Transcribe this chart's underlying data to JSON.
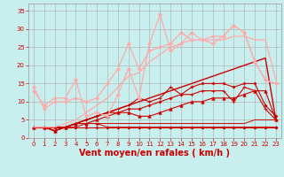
{
  "background_color": "#c8eeed",
  "grid_color": "#aaaaaa",
  "xlabel": "Vent moyen/en rafales ( km/h )",
  "xlabel_color": "#cc0000",
  "xlabel_fontsize": 7,
  "yticks": [
    0,
    5,
    10,
    15,
    20,
    25,
    30,
    35
  ],
  "xticks": [
    0,
    1,
    2,
    3,
    4,
    5,
    6,
    7,
    8,
    9,
    10,
    11,
    12,
    13,
    14,
    15,
    16,
    17,
    18,
    19,
    20,
    21,
    22,
    23
  ],
  "xlim": [
    -0.5,
    23.5
  ],
  "ylim": [
    0,
    37
  ],
  "tick_color": "#cc0000",
  "tick_fontsize": 5,
  "series": [
    {
      "x": [
        0,
        1,
        2,
        3,
        4,
        5,
        6,
        7,
        8,
        9,
        10,
        11,
        12,
        13,
        14,
        15,
        16,
        17,
        18,
        19,
        20,
        21,
        22,
        23
      ],
      "y": [
        3,
        3,
        3,
        3,
        3,
        3,
        3,
        3,
        3,
        3,
        3,
        3,
        3,
        3,
        3,
        3,
        3,
        3,
        3,
        3,
        3,
        3,
        3,
        3
      ],
      "color": "#cc0000",
      "lw": 0.8,
      "marker": "D",
      "ms": 1.5
    },
    {
      "x": [
        0,
        1,
        2,
        3,
        4,
        5,
        6,
        7,
        8,
        9,
        10,
        11,
        12,
        13,
        14,
        15,
        16,
        17,
        18,
        19,
        20,
        21,
        22,
        23
      ],
      "y": [
        3,
        3,
        2,
        3,
        3,
        4,
        4,
        3,
        3,
        3,
        3,
        3,
        3,
        3,
        3,
        3,
        3,
        3,
        3,
        3,
        3,
        3,
        3,
        3
      ],
      "color": "#cc0000",
      "lw": 0.7,
      "marker": "D",
      "ms": 1.5
    },
    {
      "x": [
        0,
        1,
        2,
        3,
        4,
        5,
        6,
        7,
        8,
        9,
        10,
        11,
        12,
        13,
        14,
        15,
        16,
        17,
        18,
        19,
        20,
        21,
        22,
        23
      ],
      "y": [
        3,
        3,
        2,
        3,
        4,
        4,
        5,
        6,
        7,
        7,
        6,
        6,
        7,
        8,
        9,
        10,
        10,
        11,
        11,
        11,
        12,
        13,
        13,
        5
      ],
      "color": "#cc0000",
      "lw": 0.8,
      "marker": "^",
      "ms": 2.5
    },
    {
      "x": [
        0,
        1,
        2,
        3,
        4,
        5,
        6,
        7,
        8,
        9,
        10,
        11,
        12,
        13,
        14,
        15,
        16,
        17,
        18,
        19,
        20,
        21,
        22,
        23
      ],
      "y": [
        3,
        3,
        2,
        3,
        4,
        5,
        6,
        7,
        8,
        9,
        10,
        11,
        12,
        13,
        14,
        15,
        16,
        17,
        18,
        19,
        20,
        21,
        22,
        5
      ],
      "color": "#cc0000",
      "lw": 1.0,
      "marker": null,
      "ms": 0
    },
    {
      "x": [
        0,
        1,
        2,
        3,
        4,
        5,
        6,
        7,
        8,
        9,
        10,
        11,
        12,
        13,
        14,
        15,
        16,
        17,
        18,
        19,
        20,
        21,
        22,
        23
      ],
      "y": [
        3,
        3,
        2,
        3,
        4,
        5,
        6,
        7,
        8,
        9,
        11,
        10,
        11,
        14,
        12,
        12,
        13,
        13,
        13,
        10,
        14,
        13,
        8,
        5
      ],
      "color": "#cc0000",
      "lw": 0.8,
      "marker": "+",
      "ms": 3
    },
    {
      "x": [
        0,
        1,
        2,
        3,
        4,
        5,
        6,
        7,
        8,
        9,
        10,
        11,
        12,
        13,
        14,
        15,
        16,
        17,
        18,
        19,
        20,
        21,
        22,
        23
      ],
      "y": [
        3,
        3,
        3,
        3,
        4,
        4,
        4,
        4,
        4,
        4,
        4,
        4,
        4,
        4,
        4,
        4,
        4,
        4,
        4,
        4,
        4,
        5,
        5,
        5
      ],
      "color": "#cc0000",
      "lw": 0.7,
      "marker": null,
      "ms": 0
    },
    {
      "x": [
        0,
        1,
        2,
        3,
        4,
        5,
        6,
        7,
        8,
        9,
        10,
        11,
        12,
        13,
        14,
        15,
        16,
        17,
        18,
        19,
        20,
        21,
        22,
        23
      ],
      "y": [
        3,
        3,
        3,
        3,
        4,
        5,
        6,
        7,
        7,
        8,
        8,
        9,
        10,
        11,
        12,
        14,
        15,
        15,
        15,
        14,
        15,
        15,
        9,
        6
      ],
      "color": "#cc0000",
      "lw": 0.8,
      "marker": "D",
      "ms": 1.5
    },
    {
      "x": [
        0,
        1,
        2,
        3,
        4,
        5,
        6,
        7,
        8,
        9,
        10,
        11,
        12,
        13,
        14,
        15,
        16,
        17,
        18,
        19,
        20,
        21,
        22,
        23
      ],
      "y": [
        13,
        9,
        11,
        11,
        16,
        6,
        7,
        6,
        12,
        19,
        11,
        26,
        34,
        24,
        26,
        29,
        27,
        28,
        28,
        31,
        29,
        21,
        16,
        15
      ],
      "color": "#ffaaaa",
      "lw": 0.9,
      "marker": "D",
      "ms": 2.0
    },
    {
      "x": [
        0,
        1,
        2,
        3,
        4,
        5,
        6,
        7,
        8,
        9,
        10,
        11,
        12,
        13,
        14,
        15,
        16,
        17,
        18,
        19,
        20,
        21,
        22,
        23
      ],
      "y": [
        14,
        8,
        10,
        10,
        11,
        10,
        11,
        15,
        19,
        26,
        19,
        24,
        25,
        26,
        29,
        27,
        27,
        26,
        28,
        31,
        29,
        21,
        16,
        15
      ],
      "color": "#ffaaaa",
      "lw": 0.9,
      "marker": "D",
      "ms": 2.0
    },
    {
      "x": [
        0,
        1,
        2,
        3,
        4,
        5,
        6,
        7,
        8,
        9,
        10,
        11,
        12,
        13,
        14,
        15,
        16,
        17,
        18,
        19,
        20,
        21,
        22,
        23
      ],
      "y": [
        3,
        3,
        3,
        4,
        5,
        7,
        9,
        11,
        14,
        17,
        18,
        21,
        23,
        25,
        26,
        27,
        27,
        27,
        27,
        28,
        28,
        27,
        27,
        16
      ],
      "color": "#ffaaaa",
      "lw": 0.9,
      "marker": null,
      "ms": 0
    }
  ]
}
